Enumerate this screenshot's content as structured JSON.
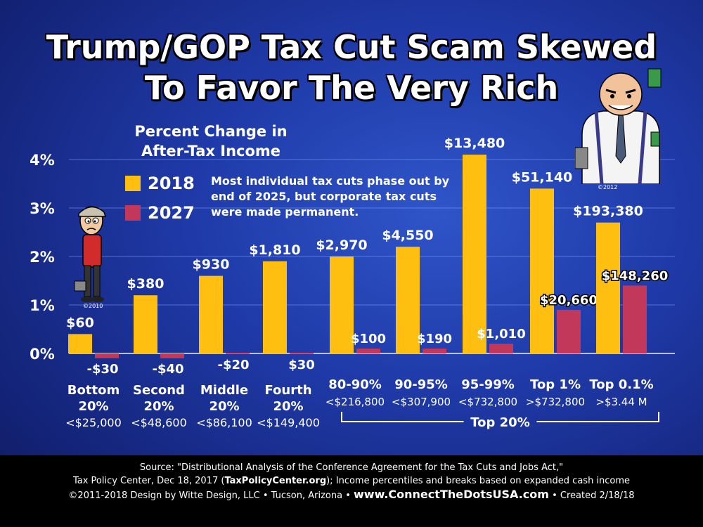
{
  "title": {
    "line1": "Trump/GOP Tax Cut Scam Skewed",
    "line2": "To Favor The Very Rich"
  },
  "legend": {
    "heading_line1": "Percent Change in",
    "heading_line2": "After-Tax Income",
    "items": [
      {
        "label": "2018",
        "color": "#ffbf10"
      },
      {
        "label": "2027",
        "color": "#c2385a"
      }
    ]
  },
  "note": "Most individual tax cuts phase out by end of 2025, but corporate tax cuts were made permanent.",
  "chart_data": {
    "type": "bar",
    "y_ticks": [
      "0%",
      "1%",
      "2%",
      "3%",
      "4%"
    ],
    "ylim": [
      -0.25,
      4.4
    ],
    "grid": true,
    "legend_position": "top-left",
    "categories": [
      {
        "line1": "Bottom",
        "line2": "20%",
        "line3": "<$25,000"
      },
      {
        "line1": "Second",
        "line2": "20%",
        "line3": "<$48,600"
      },
      {
        "line1": "Middle",
        "line2": "20%",
        "line3": "<$86,100"
      },
      {
        "line1": "Fourth",
        "line2": "20%",
        "line3": "<$149,400"
      },
      {
        "line1": "80-90%",
        "line2": "<$216,800",
        "line3": ""
      },
      {
        "line1": "90-95%",
        "line2": "<$307,900",
        "line3": ""
      },
      {
        "line1": "95-99%",
        "line2": "<$732,800",
        "line3": ""
      },
      {
        "line1": "Top 1%",
        "line2": ">$732,800",
        "line3": ""
      },
      {
        "line1": "Top 0.1%",
        "line2": ">$3.44 M",
        "line3": ""
      }
    ],
    "series": [
      {
        "name": "2018",
        "color": "#ffbf10",
        "values": [
          0.4,
          1.2,
          1.6,
          1.9,
          2.0,
          2.2,
          4.1,
          3.4,
          2.7
        ],
        "labels": [
          "$60",
          "$380",
          "$930",
          "$1,810",
          "$2,970",
          "$4,550",
          "$13,480",
          "$51,140",
          "$193,380"
        ]
      },
      {
        "name": "2027",
        "color": "#c2385a",
        "values": [
          -0.1,
          -0.1,
          0.0,
          0.0,
          0.1,
          0.1,
          0.2,
          0.9,
          1.4
        ],
        "labels": [
          "-$30",
          "-$40",
          "-$20",
          "$30",
          "$100",
          "$190",
          "$1,010",
          "$20,660",
          "$148,260"
        ]
      }
    ],
    "bracket_label": "Top 20%"
  },
  "footer": {
    "line1": "Source: \"Distributional Analysis of the Conference Agreement for the Tax Cuts and Jobs Act,\"",
    "line2_a": "Tax Policy Center, Dec 18, 2017 (",
    "line2_b": "TaxPolicyCenter.org",
    "line2_c": "); Income percentiles and breaks based on expanded cash income",
    "line3_a": "©2011-2018 Design by Witte Design, LLC • Tucson, Arizona •",
    "line3_b": "www.ConnectTheDotsUSA.com",
    "line3_c": "• Created 2/18/18"
  },
  "cartoons": {
    "poor_copyright": "©2010",
    "rich_copyright": "©2012"
  }
}
